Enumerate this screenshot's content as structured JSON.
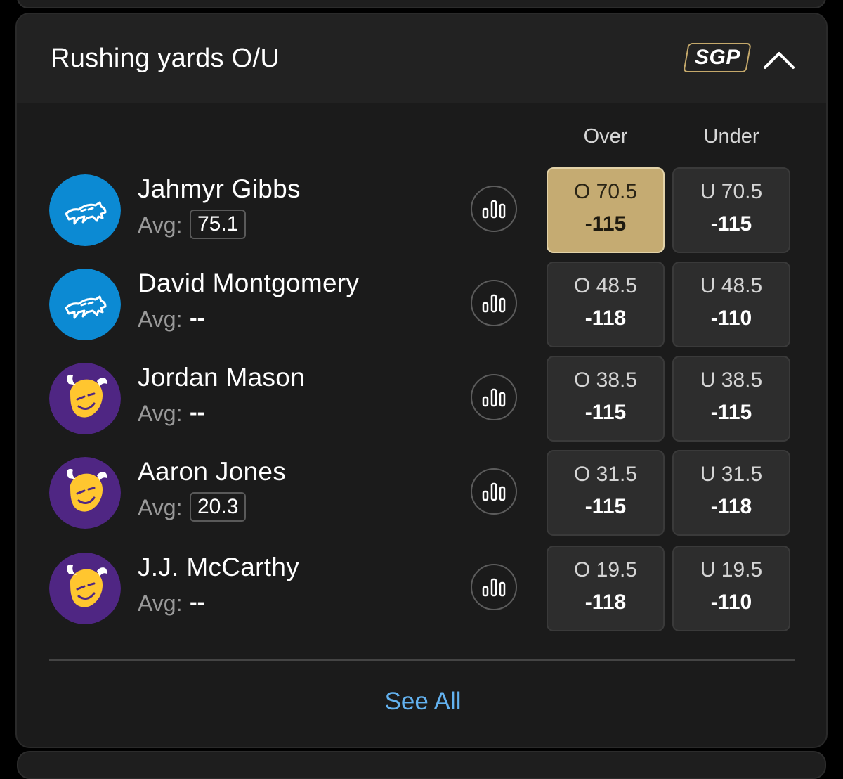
{
  "market": {
    "title": "Rushing yards O/U",
    "sgp_badge": "SGP",
    "columns": {
      "over": "Over",
      "under": "Under"
    },
    "avg_label": "Avg:",
    "see_all": "See All"
  },
  "colors": {
    "lions_blue": "#0c8ad3",
    "vikings_purple": "#4f2683",
    "selected_gold": "#c5ab72",
    "link_blue": "#63b2f0",
    "sgp_border_gold": "#c5a96b"
  },
  "icons": {
    "collapse": "chevron-up-icon",
    "stats": "bar-chart-icon",
    "lions": "detroit-lions-logo",
    "vikings": "minnesota-vikings-logo"
  },
  "players": [
    {
      "name": "Jahmyr Gibbs",
      "team": "lions",
      "avg": "75.1",
      "over_line": "O 70.5",
      "over_odds": "-115",
      "under_line": "U 70.5",
      "under_odds": "-115",
      "over_selected": true
    },
    {
      "name": "David Montgomery",
      "team": "lions",
      "avg": "--",
      "over_line": "O 48.5",
      "over_odds": "-118",
      "under_line": "U 48.5",
      "under_odds": "-110",
      "over_selected": false
    },
    {
      "name": "Jordan Mason",
      "team": "vikings",
      "avg": "--",
      "over_line": "O 38.5",
      "over_odds": "-115",
      "under_line": "U 38.5",
      "under_odds": "-115",
      "over_selected": false
    },
    {
      "name": "Aaron Jones",
      "team": "vikings",
      "avg": "20.3",
      "over_line": "O 31.5",
      "over_odds": "-115",
      "under_line": "U 31.5",
      "under_odds": "-118",
      "over_selected": false
    },
    {
      "name": "J.J. McCarthy",
      "team": "vikings",
      "avg": "--",
      "over_line": "O 19.5",
      "over_odds": "-118",
      "under_line": "U 19.5",
      "under_odds": "-110",
      "over_selected": false
    }
  ]
}
